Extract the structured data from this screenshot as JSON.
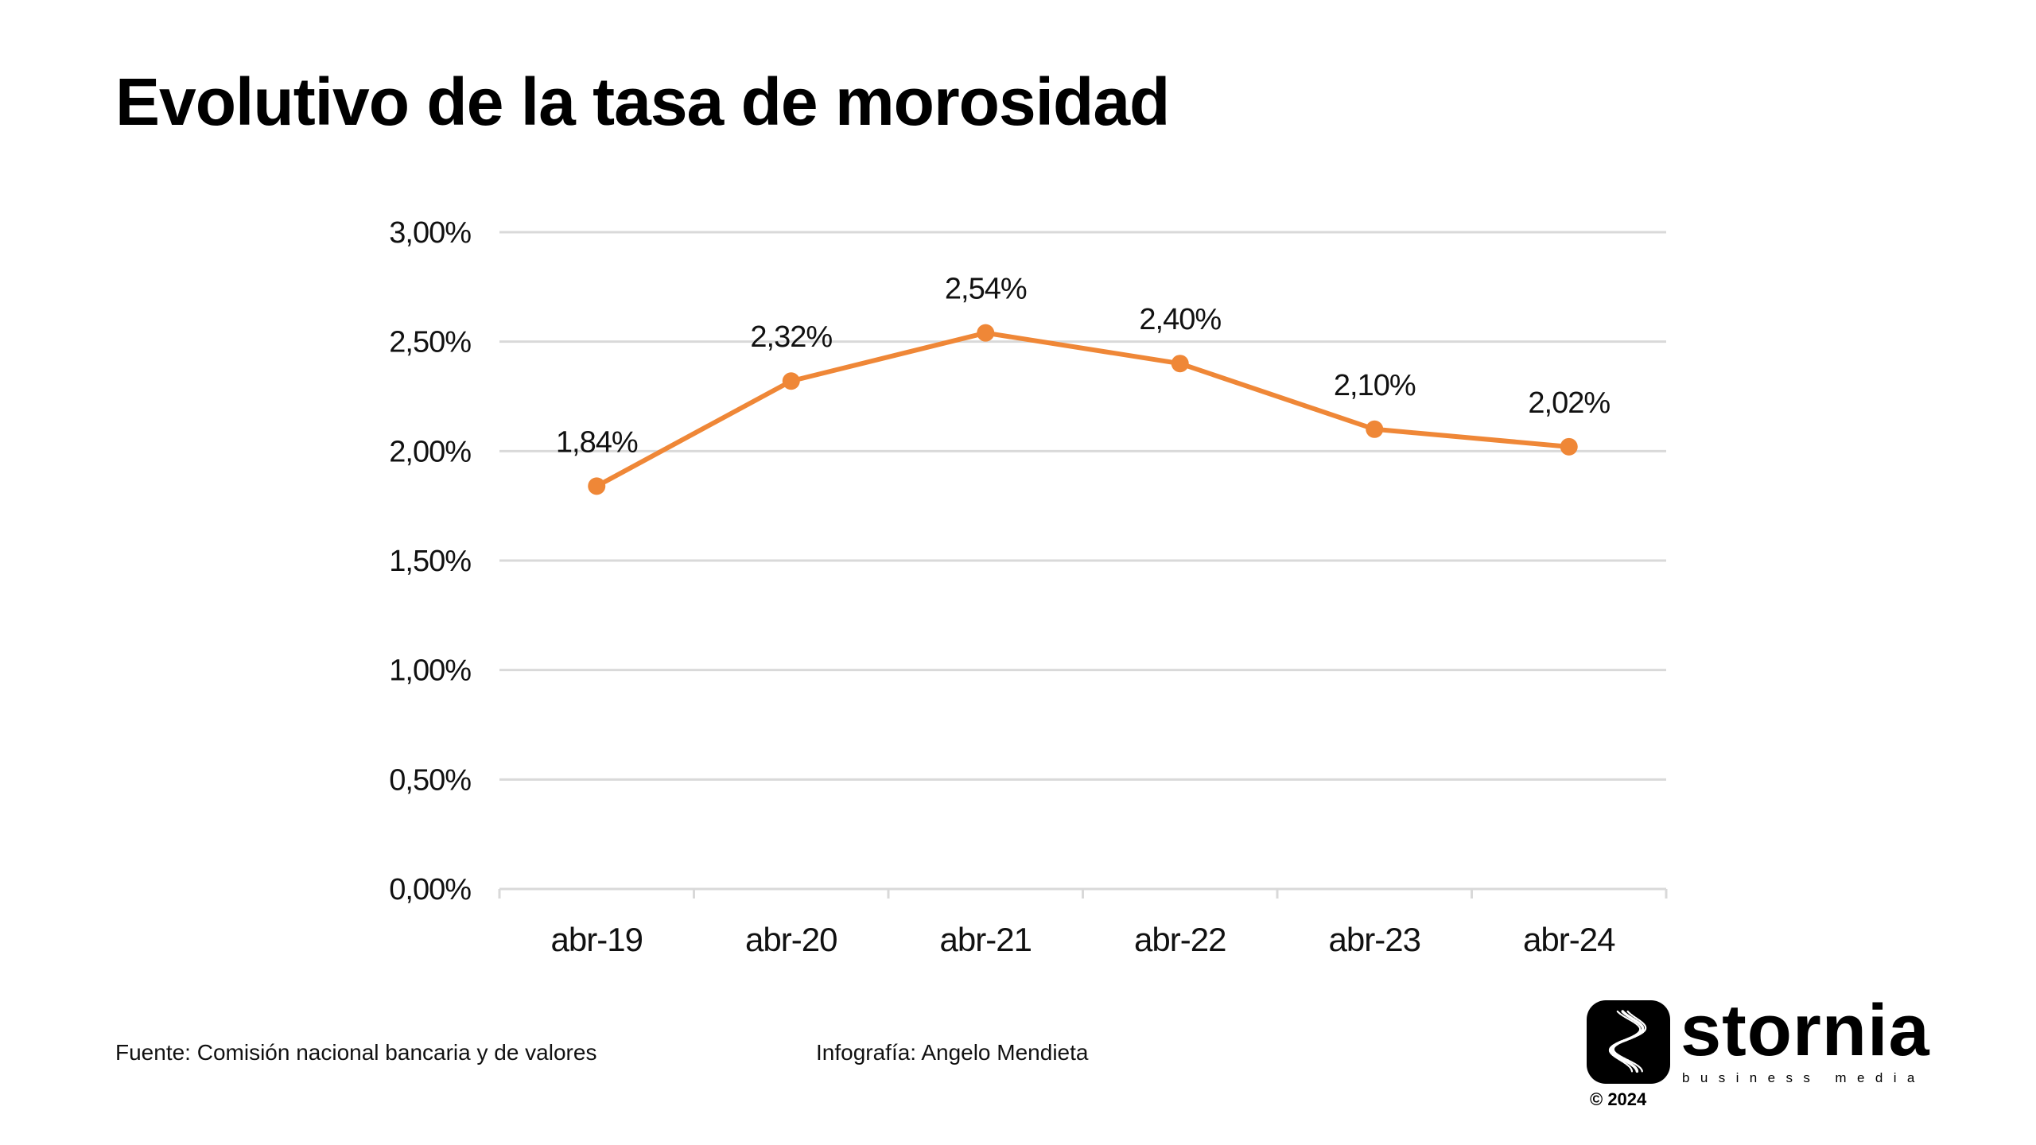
{
  "title": "Evolutivo de la tasa de morosidad",
  "chart_data": {
    "type": "line",
    "title": "Evolutivo de la tasa de morosidad",
    "categories": [
      "abr-19",
      "abr-20",
      "abr-21",
      "abr-22",
      "abr-23",
      "abr-24"
    ],
    "values": [
      1.84,
      2.32,
      2.54,
      2.4,
      2.1,
      2.02
    ],
    "data_labels": [
      "1,84%",
      "2,32%",
      "2,54%",
      "2,40%",
      "2,10%",
      "2,02%"
    ],
    "y_ticks": [
      0,
      0.5,
      1.0,
      1.5,
      2.0,
      2.5,
      3.0
    ],
    "y_tick_labels": [
      "0,00%",
      "0,50%",
      "1,00%",
      "1,50%",
      "2,00%",
      "2,50%",
      "3,00%"
    ],
    "ylim": [
      0,
      3
    ],
    "xlabel": "",
    "ylabel": "",
    "grid": true,
    "legend": "none",
    "line_color": "#EF8737",
    "grid_color": "#D9D9D9"
  },
  "footer": {
    "source": "Fuente: Comisión nacional bancaria y de valores",
    "credit": "Infografía: Angelo Mendieta"
  },
  "logo": {
    "name": "stornia",
    "tagline": "business media",
    "copyright": "© 2024"
  }
}
